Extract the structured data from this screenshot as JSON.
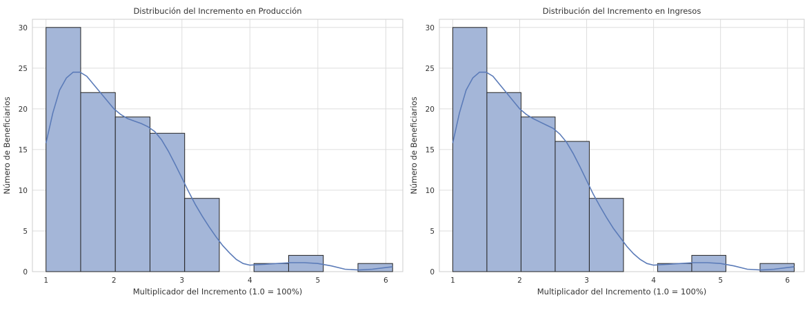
{
  "colors": {
    "bar_fill": "#a4b6d8",
    "kde_line": "#5b7bb8"
  },
  "chart_data": [
    {
      "type": "bar",
      "title": "Distribución del Incremento en Producción",
      "xlabel": "Multiplicador del Incremento (1.0 = 100%)",
      "ylabel": "Número de Beneficiarios",
      "xlim": [
        0.8,
        6.25
      ],
      "ylim": [
        0,
        31
      ],
      "x_ticks": [
        1,
        2,
        3,
        4,
        5,
        6
      ],
      "y_ticks": [
        0,
        5,
        10,
        15,
        20,
        25,
        30
      ],
      "bin_edges": [
        1.0,
        1.51,
        2.02,
        2.53,
        3.04,
        3.55,
        4.06,
        4.57,
        5.08,
        5.59,
        6.1
      ],
      "counts": [
        30,
        22,
        19,
        17,
        9,
        0,
        1,
        2,
        0,
        1
      ],
      "kde": {
        "x": [
          1.0,
          1.1,
          1.2,
          1.3,
          1.4,
          1.5,
          1.6,
          1.7,
          1.8,
          1.9,
          2.0,
          2.1,
          2.2,
          2.3,
          2.4,
          2.5,
          2.6,
          2.7,
          2.8,
          2.9,
          3.0,
          3.1,
          3.2,
          3.3,
          3.4,
          3.5,
          3.6,
          3.7,
          3.8,
          3.9,
          4.0,
          4.2,
          4.4,
          4.6,
          4.8,
          5.0,
          5.2,
          5.4,
          5.6,
          5.8,
          6.0,
          6.1
        ],
        "y": [
          15.8,
          19.5,
          22.3,
          23.8,
          24.5,
          24.5,
          24.0,
          23.0,
          22.0,
          21.0,
          20.0,
          19.3,
          18.8,
          18.5,
          18.2,
          17.8,
          17.2,
          16.2,
          14.8,
          13.2,
          11.5,
          9.8,
          8.2,
          6.8,
          5.5,
          4.3,
          3.2,
          2.3,
          1.5,
          1.0,
          0.8,
          0.9,
          1.0,
          1.1,
          1.1,
          1.0,
          0.7,
          0.3,
          0.2,
          0.3,
          0.5,
          0.6
        ]
      }
    },
    {
      "type": "bar",
      "title": "Distribución del Incremento en Ingresos",
      "xlabel": "Multiplicador del Incremento (1.0 = 100%)",
      "ylabel": "Número de Beneficiarios",
      "xlim": [
        0.8,
        6.25
      ],
      "ylim": [
        0,
        31
      ],
      "x_ticks": [
        1,
        2,
        3,
        4,
        5,
        6
      ],
      "y_ticks": [
        0,
        5,
        10,
        15,
        20,
        25,
        30
      ],
      "bin_edges": [
        1.0,
        1.51,
        2.02,
        2.53,
        3.04,
        3.55,
        4.06,
        4.57,
        5.08,
        5.59,
        6.1
      ],
      "counts": [
        30,
        22,
        19,
        16,
        9,
        0,
        1,
        2,
        0,
        1
      ],
      "kde": {
        "x": [
          1.0,
          1.1,
          1.2,
          1.3,
          1.4,
          1.5,
          1.6,
          1.7,
          1.8,
          1.9,
          2.0,
          2.1,
          2.2,
          2.3,
          2.4,
          2.5,
          2.6,
          2.7,
          2.8,
          2.9,
          3.0,
          3.1,
          3.2,
          3.3,
          3.4,
          3.5,
          3.6,
          3.7,
          3.8,
          3.9,
          4.0,
          4.2,
          4.4,
          4.6,
          4.8,
          5.0,
          5.2,
          5.4,
          5.6,
          5.8,
          6.0,
          6.1
        ],
        "y": [
          15.8,
          19.5,
          22.3,
          23.8,
          24.5,
          24.5,
          24.0,
          23.0,
          22.0,
          21.0,
          20.0,
          19.3,
          18.8,
          18.4,
          18.0,
          17.6,
          16.9,
          15.9,
          14.5,
          12.9,
          11.2,
          9.5,
          8.0,
          6.6,
          5.3,
          4.2,
          3.1,
          2.2,
          1.5,
          1.0,
          0.8,
          0.9,
          1.0,
          1.1,
          1.1,
          1.0,
          0.7,
          0.3,
          0.2,
          0.3,
          0.5,
          0.6
        ]
      }
    }
  ]
}
